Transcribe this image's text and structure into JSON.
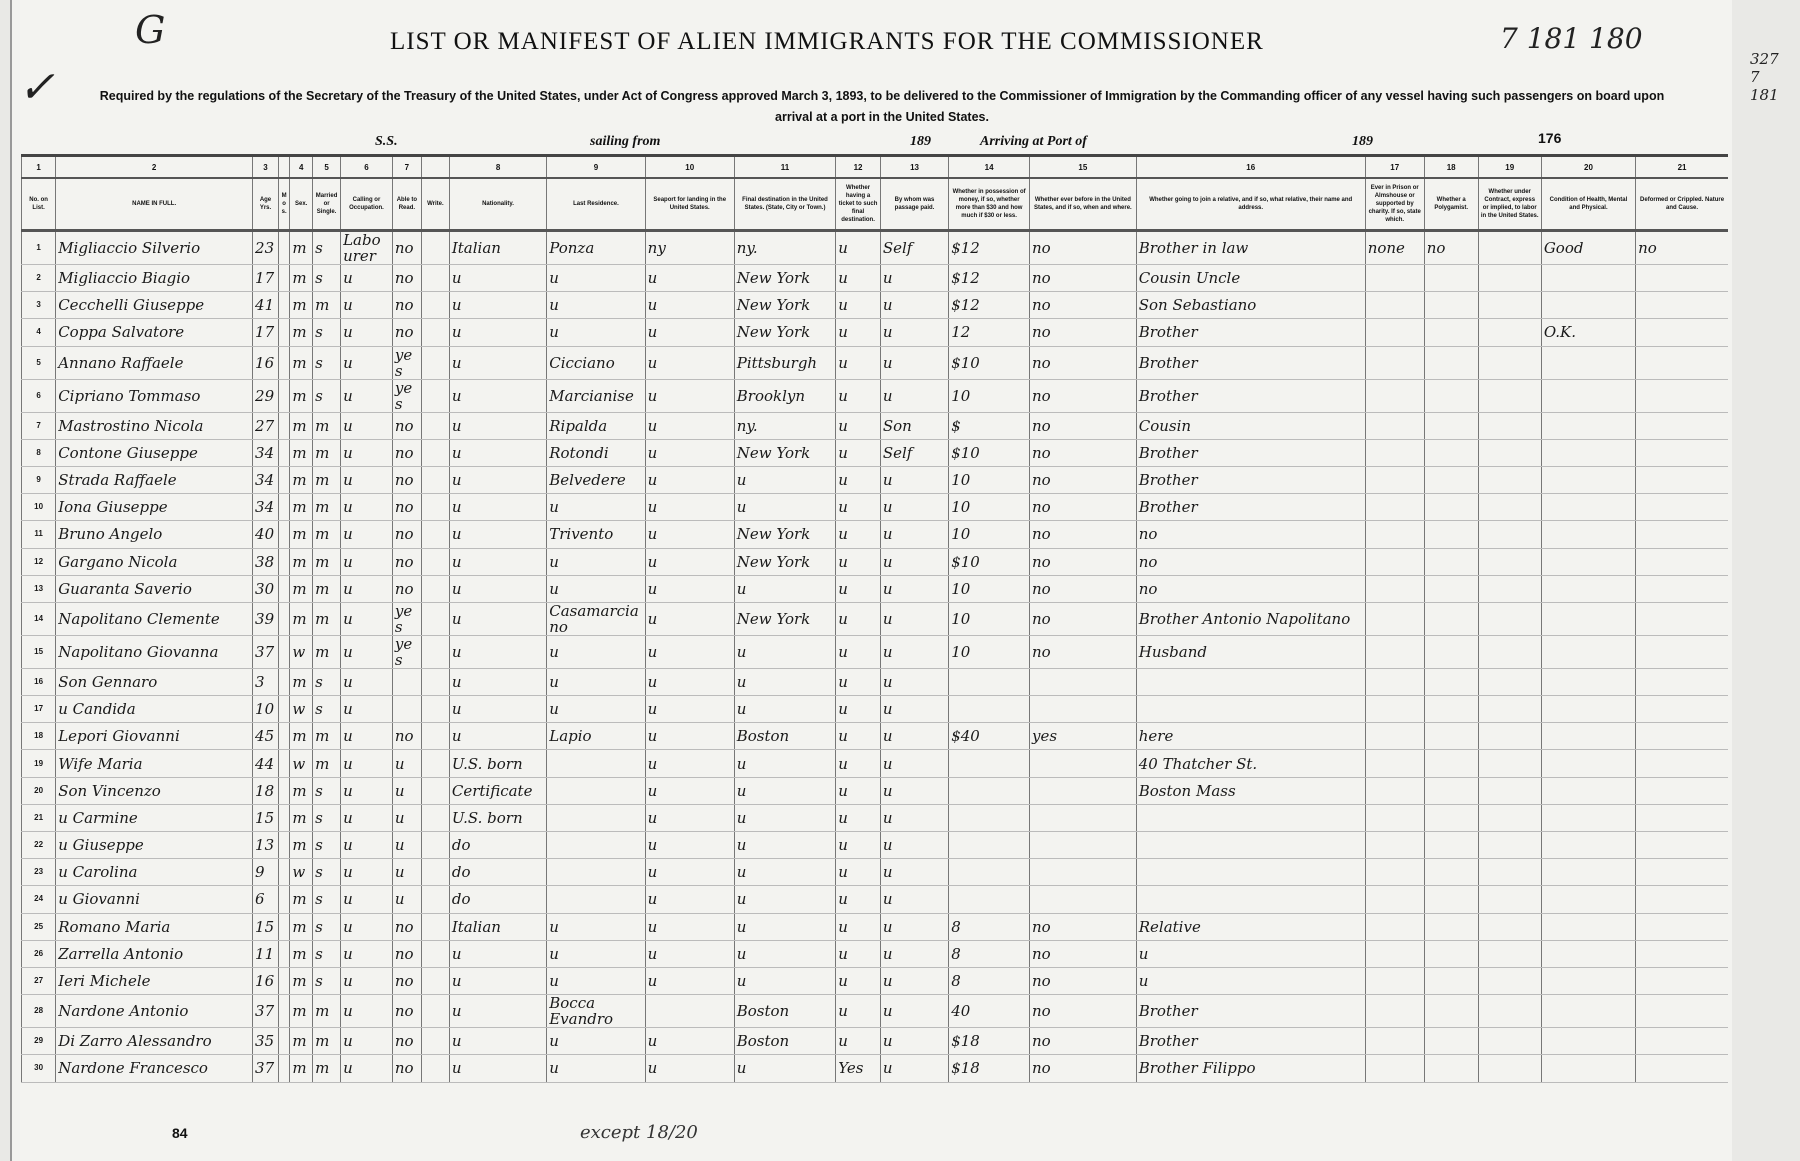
{
  "corner": {
    "left_mark": "G",
    "right_mark": "7 181 180",
    "edge_mark": "327 7 181"
  },
  "title": "LIST OR MANIFEST OF ALIEN IMMIGRANTS FOR THE COMMISSIONER",
  "subtitle": "Required by the regulations of the Secretary of the Treasury of the United States, under Act of Congress approved March 3, 1893, to be delivered to the Commissioner of Immigration by the Commanding officer of any vessel having such passengers on board upon arrival at a port in the United States.",
  "page_number": "176",
  "ship_line": {
    "ss": "S.S.",
    "sailing_from": "sailing from",
    "year1": "189",
    "arriving": "Arriving at Port of",
    "year2": "189"
  },
  "column_numbers": [
    "1",
    "2",
    "3",
    "",
    "4",
    "5",
    "6",
    "7",
    "",
    "8",
    "9",
    "10",
    "11",
    "12",
    "13",
    "14",
    "15",
    "16",
    "17",
    "18",
    "19",
    "20",
    "21"
  ],
  "column_headers": [
    "No. on List.",
    "NAME IN FULL.",
    "Age Yrs.",
    "Mos.",
    "Sex.",
    "Married or Single.",
    "Calling or Occupation.",
    "Able to Read.",
    "Write.",
    "Nationality.",
    "Last Residence.",
    "Seaport for landing in the United States.",
    "Final destination in the United States. (State, City or Town.)",
    "Whether having a ticket to such final destination.",
    "By whom was passage paid.",
    "Whether in possession of money, if so, whether more than $30 and how much if $30 or less.",
    "Whether ever before in the United States, and if so, when and where.",
    "Whether going to join a relative, and if so, what relative, their name and address.",
    "Ever in Prison or Almshouse or supported by charity. If so, state which.",
    "Whether a Polygamist.",
    "Whether under Contract, express or implied, to labor in the United States.",
    "Condition of Health, Mental and Physical.",
    "Deformed or Crippled. Nature and Cause."
  ],
  "rows": [
    [
      "1",
      "Migliaccio Silverio",
      "23",
      "",
      "m",
      "s",
      "Labourer",
      "no",
      "",
      "Italian",
      "Ponza",
      "ny",
      "ny.",
      "u",
      "Self",
      "$12",
      "no",
      "Brother in law",
      "none",
      "no",
      "",
      "Good",
      "no"
    ],
    [
      "2",
      "Migliaccio Biagio",
      "17",
      "",
      "m",
      "s",
      "u",
      "no",
      "",
      "u",
      "u",
      "u",
      "New York",
      "u",
      "u",
      "$12",
      "no",
      "Cousin Uncle",
      "",
      "",
      "",
      "",
      ""
    ],
    [
      "3",
      "Cecchelli Giuseppe",
      "41",
      "",
      "m",
      "m",
      "u",
      "no",
      "",
      "u",
      "u",
      "u",
      "New York",
      "u",
      "u",
      "$12",
      "no",
      "Son Sebastiano",
      "",
      "",
      "",
      "",
      ""
    ],
    [
      "4",
      "Coppa Salvatore",
      "17",
      "",
      "m",
      "s",
      "u",
      "no",
      "",
      "u",
      "u",
      "u",
      "New York",
      "u",
      "u",
      "12",
      "no",
      "Brother",
      "",
      "",
      "",
      "O.K.",
      ""
    ],
    [
      "5",
      "Annano Raffaele",
      "16",
      "",
      "m",
      "s",
      "u",
      "yes",
      "",
      "u",
      "Cicciano",
      "u",
      "Pittsburgh",
      "u",
      "u",
      "$10",
      "no",
      "Brother",
      "",
      "",
      "",
      "",
      ""
    ],
    [
      "6",
      "Cipriano Tommaso",
      "29",
      "",
      "m",
      "s",
      "u",
      "yes",
      "",
      "u",
      "Marcianise",
      "u",
      "Brooklyn",
      "u",
      "u",
      "10",
      "no",
      "Brother",
      "",
      "",
      "",
      "",
      ""
    ],
    [
      "7",
      "Mastrostino Nicola",
      "27",
      "",
      "m",
      "m",
      "u",
      "no",
      "",
      "u",
      "Ripalda",
      "u",
      "ny.",
      "u",
      "Son",
      "$",
      "no",
      "Cousin",
      "",
      "",
      "",
      "",
      ""
    ],
    [
      "8",
      "Contone Giuseppe",
      "34",
      "",
      "m",
      "m",
      "u",
      "no",
      "",
      "u",
      "Rotondi",
      "u",
      "New York",
      "u",
      "Self",
      "$10",
      "no",
      "Brother",
      "",
      "",
      "",
      "",
      ""
    ],
    [
      "9",
      "Strada Raffaele",
      "34",
      "",
      "m",
      "m",
      "u",
      "no",
      "",
      "u",
      "Belvedere",
      "u",
      "u",
      "u",
      "u",
      "10",
      "no",
      "Brother",
      "",
      "",
      "",
      "",
      ""
    ],
    [
      "10",
      "Iona Giuseppe",
      "34",
      "",
      "m",
      "m",
      "u",
      "no",
      "",
      "u",
      "u",
      "u",
      "u",
      "u",
      "u",
      "10",
      "no",
      "Brother",
      "",
      "",
      "",
      "",
      ""
    ],
    [
      "11",
      "Bruno Angelo",
      "40",
      "",
      "m",
      "m",
      "u",
      "no",
      "",
      "u",
      "Trivento",
      "u",
      "New York",
      "u",
      "u",
      "10",
      "no",
      "no",
      "",
      "",
      "",
      "",
      ""
    ],
    [
      "12",
      "Gargano Nicola",
      "38",
      "",
      "m",
      "m",
      "u",
      "no",
      "",
      "u",
      "u",
      "u",
      "New York",
      "u",
      "u",
      "$10",
      "no",
      "no",
      "",
      "",
      "",
      "",
      ""
    ],
    [
      "13",
      "Guaranta Saverio",
      "30",
      "",
      "m",
      "m",
      "u",
      "no",
      "",
      "u",
      "u",
      "u",
      "u",
      "u",
      "u",
      "10",
      "no",
      "no",
      "",
      "",
      "",
      "",
      ""
    ],
    [
      "14",
      "Napolitano Clemente",
      "39",
      "",
      "m",
      "m",
      "u",
      "yes",
      "",
      "u",
      "Casamarciano",
      "u",
      "New York",
      "u",
      "u",
      "10",
      "no",
      "Brother Antonio Napolitano",
      "",
      "",
      "",
      "",
      ""
    ],
    [
      "15",
      "Napolitano Giovanna",
      "37",
      "",
      "w",
      "m",
      "u",
      "yes",
      "",
      "u",
      "u",
      "u",
      "u",
      "u",
      "u",
      "10",
      "no",
      "Husband",
      "",
      "",
      "",
      "",
      ""
    ],
    [
      "16",
      "Son Gennaro",
      "3",
      "",
      "m",
      "s",
      "u",
      "",
      "",
      "u",
      "u",
      "u",
      "u",
      "u",
      "u",
      "",
      "",
      "",
      "",
      "",
      "",
      "",
      ""
    ],
    [
      "17",
      "u Candida",
      "10",
      "",
      "w",
      "s",
      "u",
      "",
      "",
      "u",
      "u",
      "u",
      "u",
      "u",
      "u",
      "",
      "",
      "",
      "",
      "",
      "",
      "",
      ""
    ],
    [
      "18",
      "Lepori Giovanni",
      "45",
      "",
      "m",
      "m",
      "u",
      "no",
      "",
      "u",
      "Lapio",
      "u",
      "Boston",
      "u",
      "u",
      "$40",
      "yes",
      "here",
      "",
      "",
      "",
      "",
      ""
    ],
    [
      "19",
      "Wife Maria",
      "44",
      "",
      "w",
      "m",
      "u",
      "u",
      "",
      "U.S. born",
      "",
      "u",
      "u",
      "u",
      "u",
      "",
      "",
      "40 Thatcher St.",
      "",
      "",
      "",
      "",
      ""
    ],
    [
      "20",
      "Son Vincenzo",
      "18",
      "",
      "m",
      "s",
      "u",
      "u",
      "",
      "Certificate",
      "",
      "u",
      "u",
      "u",
      "u",
      "",
      "",
      "Boston Mass",
      "",
      "",
      "",
      "",
      ""
    ],
    [
      "21",
      "u Carmine",
      "15",
      "",
      "m",
      "s",
      "u",
      "u",
      "",
      "U.S. born",
      "",
      "u",
      "u",
      "u",
      "u",
      "",
      "",
      "",
      "",
      "",
      "",
      "",
      ""
    ],
    [
      "22",
      "u Giuseppe",
      "13",
      "",
      "m",
      "s",
      "u",
      "u",
      "",
      "do",
      "",
      "u",
      "u",
      "u",
      "u",
      "",
      "",
      "",
      "",
      "",
      "",
      "",
      ""
    ],
    [
      "23",
      "u Carolina",
      "9",
      "",
      "w",
      "s",
      "u",
      "u",
      "",
      "do",
      "",
      "u",
      "u",
      "u",
      "u",
      "",
      "",
      "",
      "",
      "",
      "",
      "",
      ""
    ],
    [
      "24",
      "u Giovanni",
      "6",
      "",
      "m",
      "s",
      "u",
      "u",
      "",
      "do",
      "",
      "u",
      "u",
      "u",
      "u",
      "",
      "",
      "",
      "",
      "",
      "",
      "",
      ""
    ],
    [
      "25",
      "Romano Maria",
      "15",
      "",
      "m",
      "s",
      "u",
      "no",
      "",
      "Italian",
      "u",
      "u",
      "u",
      "u",
      "u",
      "8",
      "no",
      "Relative",
      "",
      "",
      "",
      "",
      ""
    ],
    [
      "26",
      "Zarrella Antonio",
      "11",
      "",
      "m",
      "s",
      "u",
      "no",
      "",
      "u",
      "u",
      "u",
      "u",
      "u",
      "u",
      "8",
      "no",
      "u",
      "",
      "",
      "",
      "",
      ""
    ],
    [
      "27",
      "Ieri Michele",
      "16",
      "",
      "m",
      "s",
      "u",
      "no",
      "",
      "u",
      "u",
      "u",
      "u",
      "u",
      "u",
      "8",
      "no",
      "u",
      "",
      "",
      "",
      "",
      ""
    ],
    [
      "28",
      "Nardone Antonio",
      "37",
      "",
      "m",
      "m",
      "u",
      "no",
      "",
      "u",
      "Bocca Evandro",
      "",
      "Boston",
      "u",
      "u",
      "40",
      "no",
      "Brother",
      "",
      "",
      "",
      "",
      ""
    ],
    [
      "29",
      "Di Zarro Alessandro",
      "35",
      "",
      "m",
      "m",
      "u",
      "no",
      "",
      "u",
      "u",
      "u",
      "Boston",
      "u",
      "u",
      "$18",
      "no",
      "Brother",
      "",
      "",
      "",
      "",
      ""
    ],
    [
      "30",
      "Nardone Francesco",
      "37",
      "",
      "m",
      "m",
      "u",
      "no",
      "",
      "u",
      "u",
      "u",
      "u",
      "Yes",
      "u",
      "$18",
      "no",
      "Brother Filippo",
      "",
      "",
      "",
      "",
      ""
    ]
  ],
  "footer": {
    "sheet_number": "84",
    "margin_note": "except 18/20"
  }
}
